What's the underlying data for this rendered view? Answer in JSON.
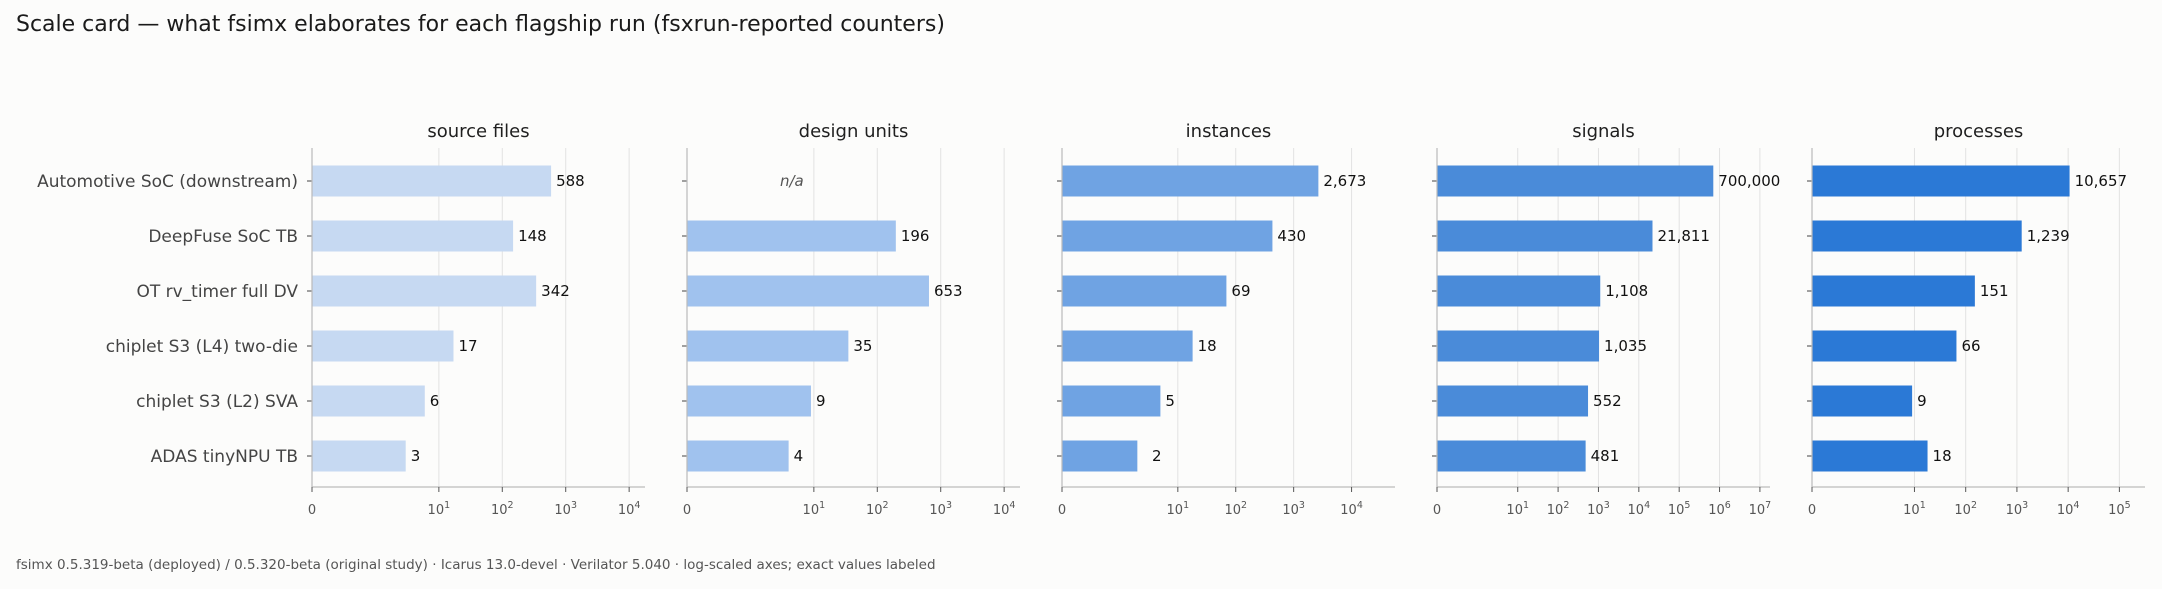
{
  "title": "Scale card — what fsimx elaborates for each flagship run (fsxrun-reported counters)",
  "footnote": "fsimx 0.5.319-beta (deployed) / 0.5.320-beta (original study) · Icarus 13.0-devel · Verilator 5.040 · log-scaled axes; exact values labeled",
  "chart_data": {
    "type": "bar",
    "orientation": "horizontal",
    "xscale": "symlog",
    "grid": "vertical",
    "categories": [
      "Automotive SoC (downstream)",
      "DeepFuse SoC TB",
      "OT rv_timer full DV",
      "chiplet S3 (L4) two-die",
      "chiplet S3 (L2) SVA",
      "ADAS tinyNPU TB"
    ],
    "panels": [
      {
        "title": "source files",
        "color": "#c6d9f2",
        "values": [
          588,
          148,
          342,
          17,
          6,
          3
        ],
        "labels": [
          "588",
          "148",
          "342",
          "17",
          "6",
          "3"
        ],
        "xlim_max_exp": 4.25,
        "ticks": [
          0,
          1,
          2,
          3,
          4
        ]
      },
      {
        "title": "design units",
        "color": "#a0c2ee",
        "values": [
          null,
          196,
          653,
          35,
          9,
          4
        ],
        "labels": [
          "n/a",
          "196",
          "653",
          "35",
          "9",
          "4"
        ],
        "xlim_max_exp": 4.25,
        "ticks": [
          0,
          1,
          2,
          3,
          4
        ]
      },
      {
        "title": "instances",
        "color": "#6fa3e3",
        "values": [
          2673,
          430,
          69,
          18,
          5,
          2
        ],
        "labels": [
          "2,673",
          "430",
          "69",
          "18",
          "5",
          "2"
        ],
        "xlim_max_exp": 4.75,
        "ticks": [
          0,
          1,
          2,
          3,
          4
        ]
      },
      {
        "title": "signals",
        "color": "#4a8bd9",
        "values": [
          700000,
          21811,
          1108,
          1035,
          552,
          481
        ],
        "labels": [
          "700,000",
          "21,811",
          "1,108",
          "1,035",
          "552",
          "481"
        ],
        "xlim_max_exp": 7.25,
        "ticks": [
          0,
          1,
          2,
          3,
          4,
          5,
          6,
          7
        ]
      },
      {
        "title": "processes",
        "color": "#2b79d6",
        "values": [
          10657,
          1239,
          151,
          66,
          9,
          18
        ],
        "labels": [
          "10,657",
          "1,239",
          "151",
          "66",
          "9",
          "18"
        ],
        "xlim_max_exp": 5.5,
        "ticks": [
          0,
          1,
          2,
          3,
          4,
          5
        ]
      }
    ]
  }
}
